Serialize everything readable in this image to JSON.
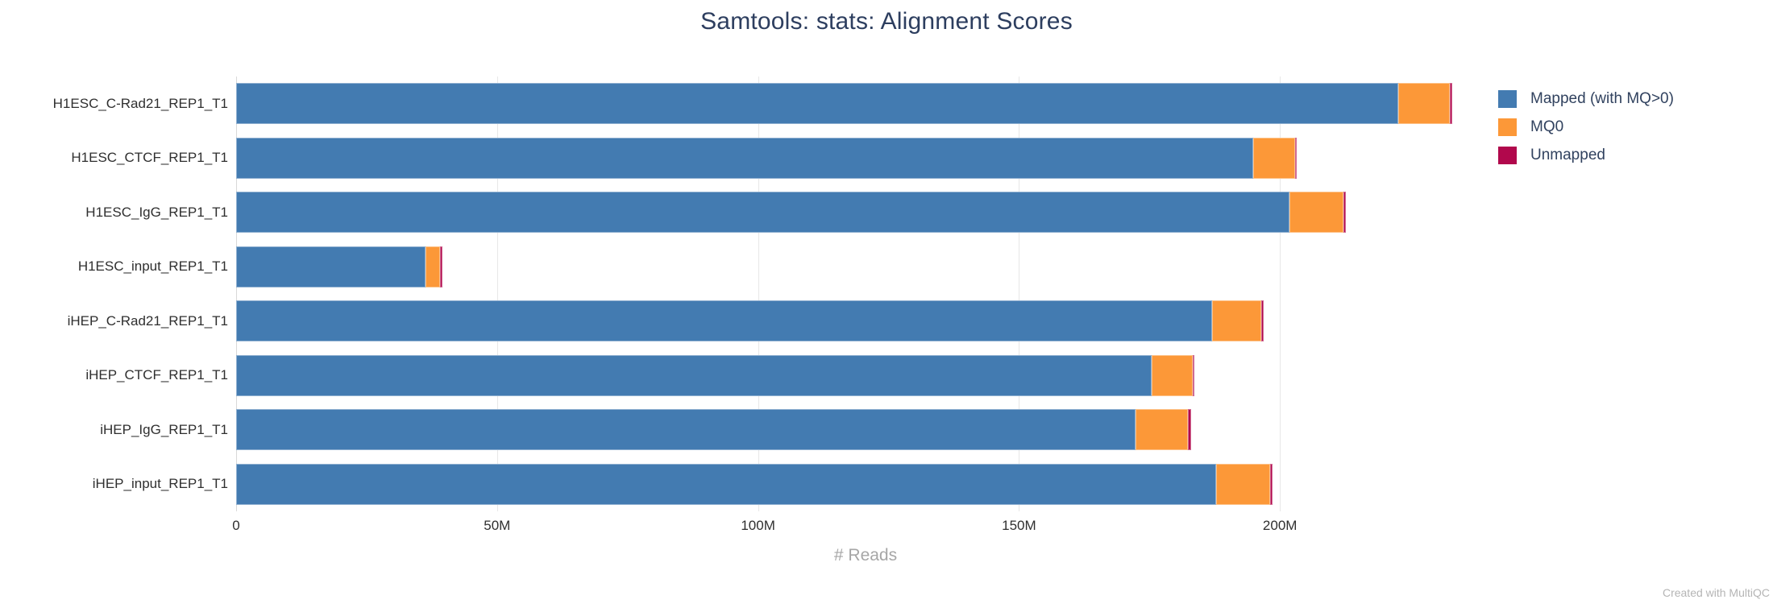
{
  "title": "Samtools: stats: Alignment Scores",
  "watermark": "Created with MultiQC",
  "colors": {
    "mapped_blue": "#437bb1",
    "mq0_orange": "#fc9838",
    "unmapped_crimson": "#b1084c",
    "title_text": "#2d3e5f",
    "axis_text": "#2f2f2f",
    "axis_title_text": "#a6a6a6",
    "gridline": "#e7e7e7"
  },
  "chart_data": {
    "type": "bar",
    "orientation": "horizontal",
    "stacked": true,
    "title": "Samtools: stats: Alignment Scores",
    "xlabel": "# Reads",
    "grid": true,
    "legend_position": "right",
    "xlim": [
      0,
      241.2
    ],
    "x_unit": "reads (values in millions, M)",
    "x_ticks": [
      {
        "value": 0,
        "label": "0"
      },
      {
        "value": 50,
        "label": "50M"
      },
      {
        "value": 100,
        "label": "100M"
      },
      {
        "value": 150,
        "label": "150M"
      },
      {
        "value": 200,
        "label": "200M"
      }
    ],
    "categories": [
      "H1ESC_C-Rad21_REP1_T1",
      "H1ESC_CTCF_REP1_T1",
      "H1ESC_IgG_REP1_T1",
      "H1ESC_input_REP1_T1",
      "iHEP_C-Rad21_REP1_T1",
      "iHEP_CTCF_REP1_T1",
      "iHEP_IgG_REP1_T1",
      "iHEP_input_REP1_T1"
    ],
    "series": [
      {
        "name": "Mapped (with MQ>0)",
        "color": "#437bb1",
        "key": "mapped",
        "values": [
          222.7,
          194.9,
          201.9,
          36.3,
          187.0,
          175.4,
          172.4,
          187.8
        ]
      },
      {
        "name": "MQ0",
        "color": "#fc9838",
        "key": "mq0",
        "values": [
          9.8,
          8.0,
          10.2,
          2.8,
          9.4,
          7.9,
          10.0,
          10.3
        ]
      },
      {
        "name": "Unmapped",
        "color": "#b1084c",
        "key": "unmapped",
        "values": [
          0.5,
          0.3,
          0.5,
          0.4,
          0.5,
          0.3,
          0.6,
          0.5
        ]
      }
    ]
  }
}
